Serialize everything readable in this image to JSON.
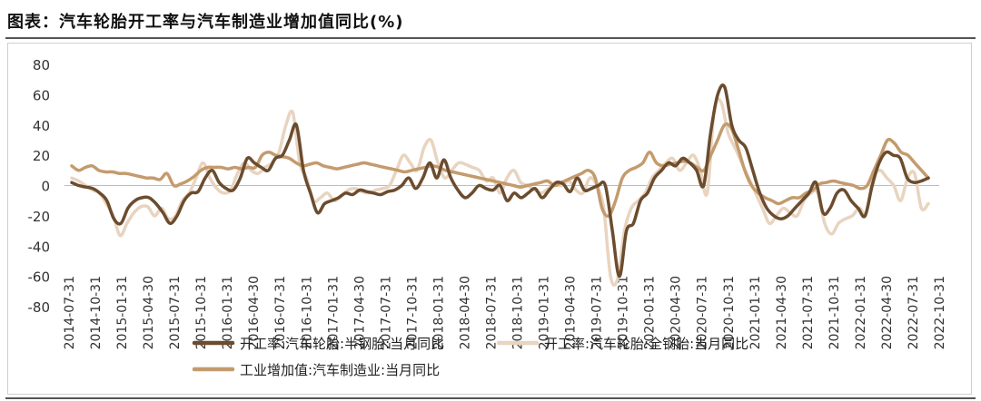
{
  "title": "图表：汽车轮胎开工率与汽车制造业增加值同比(%)",
  "chart_data": {
    "type": "line",
    "title": "图表：汽车轮胎开工率与汽车制造业增加值同比(%)",
    "ylim": [
      -80,
      80
    ],
    "yticks": [
      80,
      60,
      40,
      20,
      0,
      -20,
      -40,
      -60,
      -80
    ],
    "xlabel": "",
    "ylabel": "",
    "x_start": "2014-07-31",
    "x_end": "2022-12-31",
    "x_ticks": [
      "2014-07-31",
      "2014-10-31",
      "2015-01-31",
      "2015-04-30",
      "2015-07-31",
      "2015-10-31",
      "2016-01-31",
      "2016-04-30",
      "2016-07-31",
      "2016-10-31",
      "2017-01-31",
      "2017-04-30",
      "2017-07-31",
      "2017-10-31",
      "2018-01-31",
      "2018-04-30",
      "2018-07-31",
      "2018-10-31",
      "2019-01-31",
      "2019-04-30",
      "2019-07-31",
      "2019-10-31",
      "2020-01-31",
      "2020-04-30",
      "2020-07-31",
      "2020-10-31",
      "2021-01-31",
      "2021-04-30",
      "2021-07-31",
      "2021-10-31",
      "2022-01-31",
      "2022-04-30",
      "2022-07-31",
      "2022-10-31"
    ],
    "legend_position": "bottom",
    "series": [
      {
        "name": "开工率:汽车轮胎:半钢胎:当月同比",
        "color": "#6b4c2e",
        "values": [
          2,
          0,
          -1,
          -2,
          -5,
          -10,
          -22,
          -25,
          -15,
          -10,
          -8,
          -8,
          -12,
          -18,
          -25,
          -20,
          -10,
          -5,
          -4,
          5,
          10,
          2,
          -2,
          -3,
          5,
          18,
          15,
          12,
          10,
          18,
          20,
          30,
          40,
          10,
          -5,
          -18,
          -12,
          -10,
          -8,
          -5,
          -6,
          -3,
          -4,
          -5,
          -6,
          -4,
          -3,
          0,
          5,
          -2,
          5,
          15,
          5,
          17,
          5,
          -3,
          -8,
          -5,
          0,
          -2,
          -3,
          0,
          -10,
          -5,
          -8,
          -5,
          -2,
          -8,
          -3,
          2,
          1,
          -4,
          5,
          -3,
          -2,
          0,
          0,
          -30,
          -60,
          -30,
          -25,
          -10,
          -5,
          5,
          10,
          15,
          13,
          18,
          15,
          10,
          0,
          35,
          60,
          65,
          40,
          30,
          25,
          10,
          -5,
          -15,
          -20,
          -22,
          -20,
          -15,
          -10,
          -5,
          2,
          -18,
          -15,
          -5,
          -3,
          -10,
          -15,
          -20,
          0,
          15,
          22,
          20,
          18,
          5,
          2,
          3,
          5
        ]
      },
      {
        "name": "开工率:汽车轮胎:全钢胎:当月同比",
        "color": "#e8d4c0",
        "values": [
          5,
          3,
          0,
          -3,
          -5,
          -12,
          -20,
          -33,
          -25,
          -18,
          -14,
          -14,
          -20,
          -15,
          -22,
          -20,
          -10,
          -5,
          5,
          15,
          5,
          -2,
          -5,
          -3,
          8,
          15,
          10,
          8,
          12,
          15,
          22,
          40,
          48,
          15,
          5,
          -10,
          -8,
          -5,
          -10,
          -7,
          -3,
          -2,
          -4,
          -5,
          -3,
          -2,
          0,
          10,
          20,
          15,
          10,
          25,
          30,
          15,
          5,
          10,
          15,
          14,
          12,
          10,
          3,
          5,
          -5,
          5,
          10,
          2,
          0,
          -3,
          -5,
          -2,
          0,
          0,
          3,
          -3,
          -5,
          5,
          0,
          -15,
          -60,
          -62,
          -30,
          -15,
          -10,
          -5,
          5,
          10,
          15,
          18,
          10,
          15,
          20,
          10,
          -5,
          50,
          55,
          35,
          25,
          15,
          5,
          -5,
          -15,
          -25,
          -20,
          -15,
          -18,
          -20,
          -10,
          -5,
          -5,
          -25,
          -32,
          -25,
          -22,
          -20,
          -15,
          -18,
          5,
          10,
          5,
          0,
          -10,
          5,
          8,
          -15,
          -12
        ]
      },
      {
        "name": "工业增加值:汽车制造业:当月同比",
        "color": "#c49b6d",
        "values": [
          13,
          10,
          12,
          13,
          10,
          9,
          9,
          8,
          8,
          7,
          6,
          5,
          5,
          4,
          8,
          0,
          1,
          3,
          6,
          10,
          12,
          12,
          12,
          11,
          12,
          11,
          12,
          12,
          20,
          22,
          20,
          19,
          18,
          15,
          13,
          14,
          15,
          13,
          12,
          11,
          12,
          13,
          14,
          15,
          14,
          13,
          12,
          11,
          10,
          9,
          10,
          11,
          12,
          13,
          12,
          10,
          9,
          8,
          7,
          6,
          5,
          4,
          3,
          2,
          1,
          0,
          -1,
          0,
          1,
          2,
          3,
          0,
          2,
          4,
          6,
          8,
          10,
          5,
          -15,
          -20,
          -10,
          5,
          10,
          12,
          15,
          22,
          15,
          13,
          14,
          15,
          16,
          15,
          12,
          10,
          20,
          30,
          40,
          38,
          25,
          10,
          0,
          -5,
          -8,
          -10,
          -12,
          -10,
          -8,
          -8,
          -5,
          -3,
          1,
          2,
          3,
          2,
          1,
          0,
          -2,
          0,
          10,
          20,
          30,
          28,
          22,
          20,
          15,
          10,
          5
        ]
      }
    ]
  }
}
